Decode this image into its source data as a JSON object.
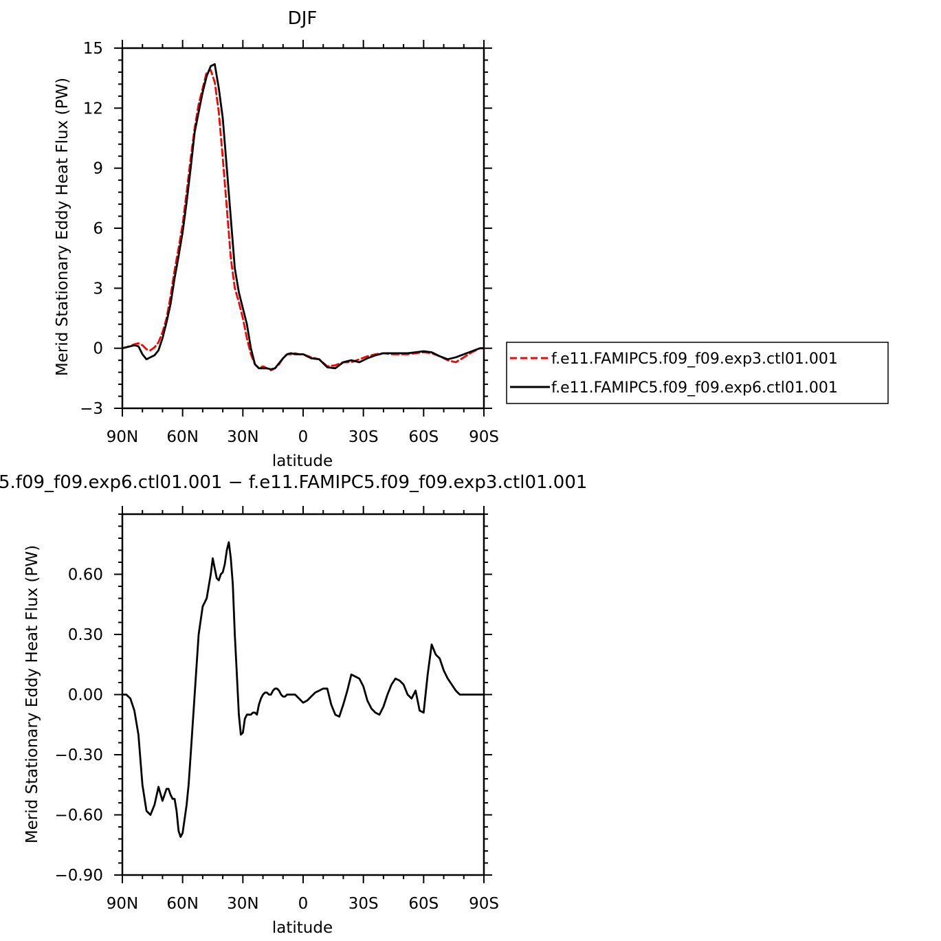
{
  "chart_data": [
    {
      "type": "line",
      "title": "DJF",
      "xlabel": "latitude",
      "ylabel": "Merid Stationary Eddy Heat Flux (PW)",
      "xlim": [
        90,
        -90
      ],
      "ylim": [
        -3,
        15
      ],
      "x_ticks": [
        "90N",
        "60N",
        "30N",
        "0",
        "30S",
        "60S",
        "90S"
      ],
      "y_ticks": [
        "−3",
        "0",
        "3",
        "6",
        "9",
        "12",
        "15"
      ],
      "legend_position": "right",
      "series": [
        {
          "name": "f.e11.FAMIPC5.f09_f09.exp3.ctl01.001",
          "color": "#ff0000",
          "style": "dashed",
          "x": [
            90,
            88,
            86,
            84,
            82,
            80,
            78,
            76,
            74,
            72,
            70,
            68,
            66,
            64,
            62,
            60,
            58,
            56,
            54,
            52,
            50,
            48,
            46,
            44,
            42,
            40,
            38,
            36,
            34,
            32,
            30,
            28,
            26,
            24,
            22,
            20,
            18,
            16,
            14,
            12,
            10,
            8,
            6,
            4,
            2,
            0,
            -4,
            -8,
            -12,
            -16,
            -20,
            -24,
            -28,
            -32,
            -36,
            -40,
            -44,
            -48,
            -52,
            -56,
            -60,
            -64,
            -68,
            -72,
            -76,
            -80,
            -84,
            -88,
            -90
          ],
          "y": [
            0.0,
            0.05,
            0.12,
            0.2,
            0.25,
            0.15,
            -0.05,
            -0.1,
            0.05,
            0.3,
            0.8,
            1.5,
            2.6,
            3.9,
            5.0,
            6.2,
            7.8,
            9.5,
            11.0,
            12.2,
            13.0,
            13.8,
            13.9,
            13.3,
            11.8,
            9.5,
            7.0,
            4.5,
            3.0,
            2.3,
            1.5,
            0.5,
            -0.3,
            -0.8,
            -1.0,
            -0.9,
            -1.0,
            -1.1,
            -1.0,
            -0.8,
            -0.5,
            -0.3,
            -0.3,
            -0.25,
            -0.3,
            -0.3,
            -0.45,
            -0.55,
            -0.9,
            -0.85,
            -0.7,
            -0.7,
            -0.55,
            -0.4,
            -0.3,
            -0.25,
            -0.3,
            -0.3,
            -0.3,
            -0.25,
            -0.2,
            -0.25,
            -0.4,
            -0.6,
            -0.7,
            -0.45,
            -0.2,
            0.0,
            0.0
          ]
        },
        {
          "name": "f.e11.FAMIPC5.f09_f09.exp6.ctl01.001",
          "color": "#000000",
          "style": "solid",
          "x": [
            90,
            88,
            86,
            84,
            82,
            80,
            78,
            76,
            74,
            72,
            70,
            68,
            66,
            64,
            62,
            60,
            58,
            56,
            54,
            52,
            50,
            48,
            46,
            44,
            42,
            40,
            38,
            36,
            34,
            32,
            30,
            28,
            26,
            24,
            22,
            20,
            18,
            16,
            14,
            12,
            10,
            8,
            6,
            4,
            2,
            0,
            -4,
            -8,
            -12,
            -16,
            -20,
            -24,
            -28,
            -32,
            -36,
            -40,
            -44,
            -48,
            -52,
            -56,
            -60,
            -64,
            -68,
            -72,
            -76,
            -80,
            -84,
            -88,
            -90
          ],
          "y": [
            0.0,
            0.05,
            0.1,
            0.15,
            0.1,
            -0.3,
            -0.55,
            -0.45,
            -0.35,
            -0.1,
            0.5,
            1.3,
            2.2,
            3.5,
            4.6,
            5.8,
            7.3,
            9.0,
            10.8,
            11.8,
            12.8,
            13.6,
            14.1,
            14.2,
            13.0,
            11.5,
            9.0,
            6.5,
            4.0,
            2.8,
            2.0,
            1.2,
            0.0,
            -0.8,
            -1.0,
            -1.0,
            -1.0,
            -1.05,
            -1.0,
            -0.75,
            -0.5,
            -0.3,
            -0.25,
            -0.3,
            -0.3,
            -0.3,
            -0.5,
            -0.55,
            -0.95,
            -1.0,
            -0.7,
            -0.6,
            -0.7,
            -0.5,
            -0.35,
            -0.25,
            -0.25,
            -0.25,
            -0.25,
            -0.2,
            -0.15,
            -0.2,
            -0.4,
            -0.55,
            -0.45,
            -0.3,
            -0.15,
            0.0,
            0.0
          ]
        }
      ]
    },
    {
      "type": "line",
      "title": "5.f09_f09.exp6.ctl01.001  −  f.e11.FAMIPC5.f09_f09.exp3.ctl01.001",
      "xlabel": "latitude",
      "ylabel": "Merid Stationary Eddy Heat Flux (PW)",
      "xlim": [
        90,
        -90
      ],
      "ylim": [
        -0.9,
        0.9
      ],
      "x_ticks": [
        "90N",
        "60N",
        "30N",
        "0",
        "30S",
        "60S",
        "90S"
      ],
      "y_ticks": [
        "−0.90",
        "−0.60",
        "−0.30",
        "0.00",
        "0.30",
        "0.60"
      ],
      "series": [
        {
          "color": "#000000",
          "style": "solid",
          "x": [
            90,
            88,
            86,
            84,
            82,
            80,
            78,
            76,
            74,
            72,
            70,
            68,
            67,
            66,
            65,
            64,
            63,
            62,
            61,
            60,
            58,
            57,
            56,
            54,
            52,
            50,
            48,
            46,
            45,
            44,
            43,
            42,
            41,
            40,
            39,
            38,
            37,
            36,
            35,
            34,
            33,
            32,
            31,
            30,
            29,
            28,
            27,
            26,
            25,
            24,
            23,
            22,
            21,
            20,
            19,
            18,
            17,
            16,
            15,
            14,
            13,
            12,
            11,
            10,
            9,
            8,
            7,
            6,
            5,
            4,
            3,
            2,
            1,
            0,
            -2,
            -4,
            -6,
            -8,
            -10,
            -12,
            -14,
            -16,
            -18,
            -20,
            -22,
            -24,
            -26,
            -28,
            -30,
            -32,
            -34,
            -36,
            -38,
            -40,
            -42,
            -44,
            -46,
            -48,
            -50,
            -52,
            -54,
            -56,
            -58,
            -60,
            -62,
            -64,
            -66,
            -68,
            -70,
            -72,
            -74,
            -76,
            -78,
            -80,
            -82,
            -84,
            -86,
            -88,
            -90
          ],
          "y": [
            0.0,
            0.0,
            -0.02,
            -0.08,
            -0.2,
            -0.45,
            -0.58,
            -0.6,
            -0.55,
            -0.46,
            -0.53,
            -0.47,
            -0.47,
            -0.5,
            -0.52,
            -0.52,
            -0.58,
            -0.68,
            -0.71,
            -0.69,
            -0.55,
            -0.45,
            -0.3,
            0.0,
            0.3,
            0.44,
            0.48,
            0.6,
            0.68,
            0.63,
            0.58,
            0.57,
            0.6,
            0.61,
            0.65,
            0.72,
            0.76,
            0.68,
            0.55,
            0.3,
            0.1,
            -0.1,
            -0.2,
            -0.19,
            -0.12,
            -0.1,
            -0.1,
            -0.1,
            -0.09,
            -0.09,
            -0.1,
            -0.05,
            -0.02,
            0.0,
            0.01,
            0.01,
            0.0,
            0.0,
            0.02,
            0.03,
            0.03,
            0.02,
            0.0,
            -0.01,
            -0.01,
            0.0,
            0.0,
            0.0,
            0.0,
            0.0,
            -0.01,
            -0.02,
            -0.03,
            -0.04,
            -0.03,
            -0.01,
            0.01,
            0.02,
            0.03,
            0.03,
            -0.05,
            -0.1,
            -0.11,
            -0.05,
            0.02,
            0.1,
            0.09,
            0.08,
            0.04,
            -0.03,
            -0.07,
            -0.09,
            -0.1,
            -0.06,
            0.0,
            0.05,
            0.08,
            0.07,
            0.05,
            0.0,
            -0.02,
            0.02,
            -0.08,
            -0.09,
            0.1,
            0.25,
            0.2,
            0.18,
            0.12,
            0.08,
            0.05,
            0.02,
            0.0,
            0.0,
            0.0,
            0.0,
            0.0,
            0.0,
            0.0
          ]
        }
      ]
    }
  ]
}
